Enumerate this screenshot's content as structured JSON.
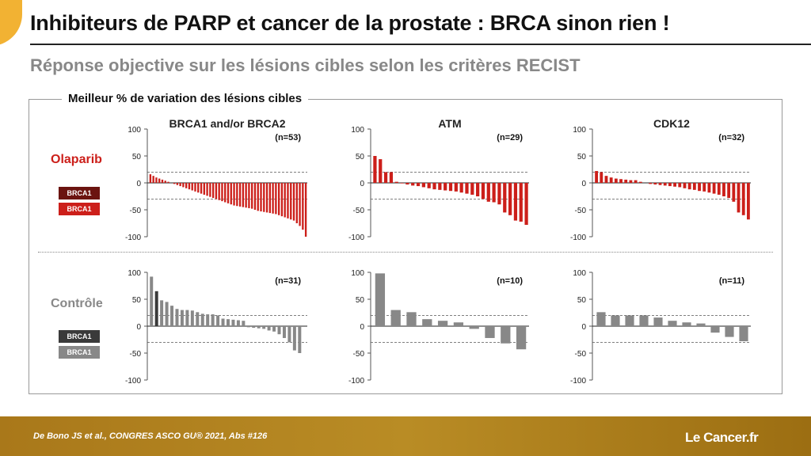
{
  "title": "Inhibiteurs de PARP et cancer de la prostate : BRCA sinon rien !",
  "subtitle": "Réponse objective sur les lésions cibles selon les critères RECIST",
  "frame_title": "Meilleur % de variation des lésions cibles",
  "rows": {
    "olaparib": {
      "label": "Olaparib",
      "color": "#cc1f1a",
      "legend": [
        "BRCA1",
        "BRCA1"
      ],
      "legend_colors": [
        "#6b1410",
        "#cc1f1a"
      ]
    },
    "control": {
      "label": "Contrôle",
      "color": "#888888",
      "legend": [
        "BRCA1",
        "BRCA1"
      ],
      "legend_colors": [
        "#3a3a3a",
        "#888888"
      ]
    }
  },
  "footer": {
    "citation": "De Bono JS et al., CONGRES ASCO GU® 2021, Abs #126"
  },
  "logo": {
    "prefix": "Le ",
    "word": "Cancer",
    "suffix": ".fr"
  },
  "colors": {
    "accent": "#f2b233",
    "footer": "#b08020",
    "olaparib": "#cc1f1a",
    "olaparib_dark": "#6b1410",
    "control": "#888888",
    "control_dark": "#3a3a3a"
  },
  "chart_data": [
    {
      "type": "bar",
      "row": "Olaparib",
      "title": "BRCA1 and/or BRCA2",
      "n_label": "(n=53)",
      "yticks": [
        100,
        50,
        0,
        -50,
        -100
      ],
      "ylim": [
        -100,
        100
      ],
      "reference_lines": [
        20,
        -30
      ],
      "values": [
        16,
        13,
        10,
        8,
        6,
        4,
        2,
        0,
        -2,
        -4,
        -6,
        -8,
        -10,
        -12,
        -14,
        -16,
        -18,
        -20,
        -22,
        -24,
        -26,
        -28,
        -30,
        -32,
        -34,
        -36,
        -38,
        -40,
        -42,
        -43,
        -44,
        -45,
        -46,
        -47,
        -48,
        -50,
        -52,
        -53,
        -54,
        -55,
        -56,
        -57,
        -58,
        -60,
        -62,
        -64,
        -66,
        -68,
        -70,
        -75,
        -80,
        -87,
        -100
      ],
      "dark_indices": []
    },
    {
      "type": "bar",
      "row": "Olaparib",
      "title": "ATM",
      "n_label": "(n=29)",
      "yticks": [
        100,
        50,
        0,
        -50,
        -100
      ],
      "ylim": [
        -100,
        100
      ],
      "reference_lines": [
        20,
        -30
      ],
      "values": [
        50,
        44,
        20,
        20,
        2,
        -1,
        -3,
        -5,
        -6,
        -8,
        -10,
        -12,
        -13,
        -14,
        -15,
        -16,
        -18,
        -20,
        -22,
        -25,
        -30,
        -35,
        -36,
        -40,
        -55,
        -60,
        -70,
        -72,
        -78
      ],
      "dark_indices": []
    },
    {
      "type": "bar",
      "row": "Olaparib",
      "title": "CDK12",
      "n_label": "(n=32)",
      "yticks": [
        100,
        50,
        0,
        -50,
        -100
      ],
      "ylim": [
        -100,
        100
      ],
      "reference_lines": [
        20,
        -30
      ],
      "values": [
        22,
        20,
        13,
        10,
        8,
        7,
        6,
        5,
        5,
        2,
        0,
        -2,
        -3,
        -4,
        -5,
        -6,
        -7,
        -8,
        -10,
        -12,
        -13,
        -15,
        -16,
        -18,
        -20,
        -22,
        -25,
        -28,
        -35,
        -55,
        -60,
        -68
      ],
      "dark_indices": []
    },
    {
      "type": "bar",
      "row": "Contrôle",
      "n_label": "(n=31)",
      "yticks": [
        100,
        50,
        0,
        -50,
        -100
      ],
      "ylim": [
        -100,
        100
      ],
      "reference_lines": [
        20,
        -30
      ],
      "values": [
        92,
        65,
        48,
        45,
        38,
        32,
        30,
        30,
        29,
        26,
        23,
        22,
        22,
        20,
        14,
        13,
        12,
        11,
        10,
        -2,
        -3,
        -4,
        -5,
        -8,
        -10,
        -15,
        -22,
        -30,
        -45,
        -50,
        0
      ],
      "dark_indices": [
        1
      ]
    },
    {
      "type": "bar",
      "row": "Contrôle",
      "n_label": "(n=10)",
      "yticks": [
        100,
        50,
        0,
        -50,
        -100
      ],
      "ylim": [
        -100,
        100
      ],
      "reference_lines": [
        20,
        -30
      ],
      "values": [
        98,
        30,
        26,
        13,
        10,
        7,
        -5,
        -22,
        -32,
        -43
      ],
      "dark_indices": []
    },
    {
      "type": "bar",
      "row": "Contrôle",
      "n_label": "(n=11)",
      "yticks": [
        100,
        50,
        0,
        -50,
        -100
      ],
      "ylim": [
        -100,
        100
      ],
      "reference_lines": [
        20,
        -30
      ],
      "values": [
        26,
        20,
        20,
        20,
        16,
        10,
        7,
        5,
        -12,
        -20,
        -28
      ],
      "dark_indices": []
    }
  ]
}
